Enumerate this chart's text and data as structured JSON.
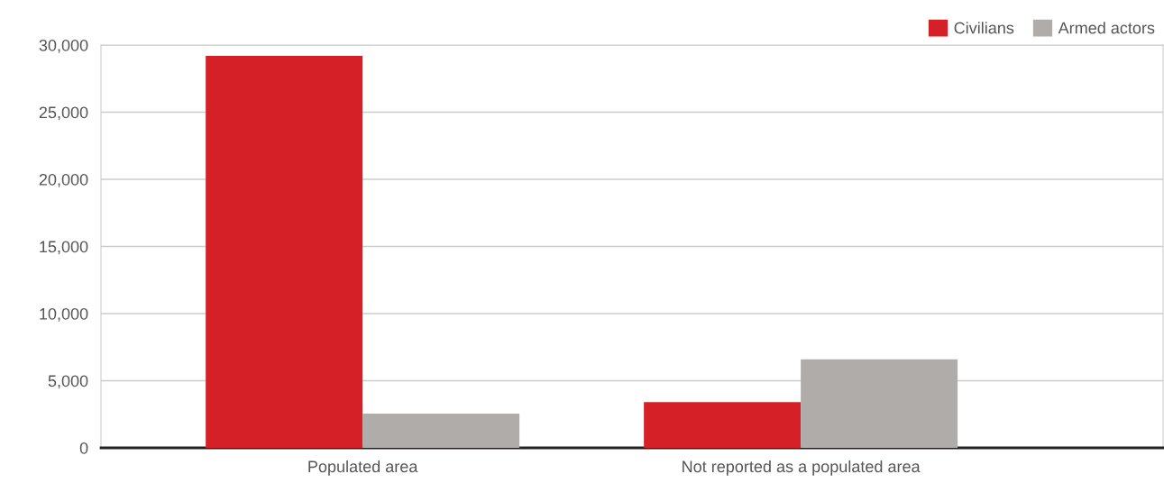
{
  "chart_data": {
    "type": "bar",
    "categories": [
      "Populated area",
      "Not reported as a populated area"
    ],
    "series": [
      {
        "name": "Civilians",
        "color": "#d52027",
        "values": [
          29200,
          3400
        ]
      },
      {
        "name": "Armed actors",
        "color": "#b0aca9",
        "values": [
          2550,
          6600
        ]
      }
    ],
    "ylim": [
      0,
      30000
    ],
    "yticks": [
      {
        "value": 0,
        "label": "0"
      },
      {
        "value": 5000,
        "label": "5,000"
      },
      {
        "value": 10000,
        "label": "10,000"
      },
      {
        "value": 15000,
        "label": "15,000"
      },
      {
        "value": 20000,
        "label": "20,000"
      },
      {
        "value": 25000,
        "label": "25,000"
      },
      {
        "value": 30000,
        "label": "30,000"
      }
    ],
    "grid": "y",
    "legend": "top right"
  }
}
